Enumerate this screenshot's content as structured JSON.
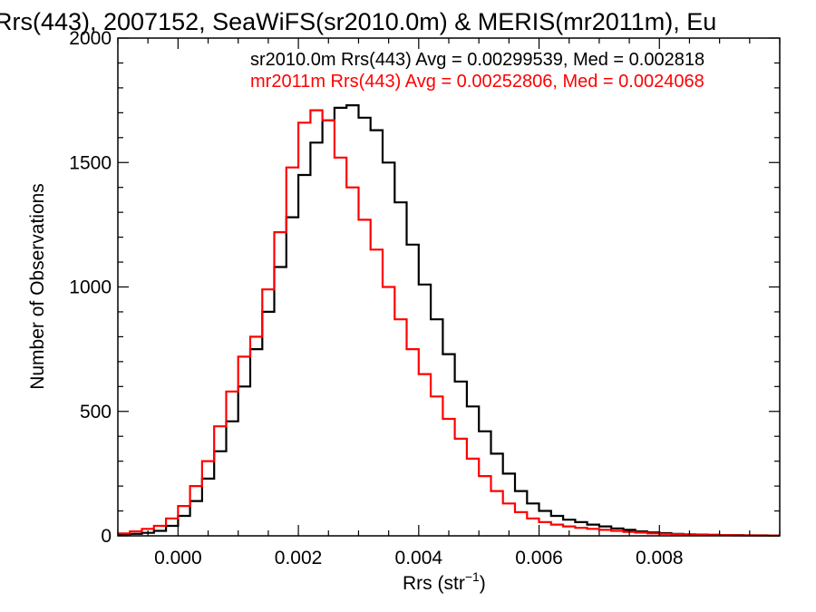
{
  "chart_data": {
    "type": "histogram",
    "title": "Rrs(443), 2007152, SeaWiFS(sr2010.0m) & MERIS(mr2011m), Eu",
    "xlabel": "Rrs (str",
    "xlabel_sup": "−1",
    "xlabel_close": ")",
    "ylabel": "Number of Observations",
    "xlim": [
      -0.001,
      0.01
    ],
    "ylim": [
      0,
      2000
    ],
    "xticks": [
      0.0,
      0.002,
      0.004,
      0.006,
      0.008
    ],
    "xtick_labels": [
      "0.000",
      "0.002",
      "0.004",
      "0.006",
      "0.008"
    ],
    "yticks": [
      0,
      500,
      1000,
      1500,
      2000
    ],
    "ytick_labels": [
      "0",
      "500",
      "1000",
      "1500",
      "2000"
    ],
    "grid": false,
    "series": [
      {
        "name": "sr2010.0m",
        "color": "#000000",
        "annotation": "sr2010.0m Rrs(443) Avg = 0.00299539, Med = 0.002818",
        "x": [
          -0.001,
          -0.0008,
          -0.0006,
          -0.0004,
          -0.0002,
          0.0,
          0.0002,
          0.0004,
          0.0006,
          0.0008,
          0.001,
          0.0012,
          0.0014,
          0.0016,
          0.0018,
          0.002,
          0.0022,
          0.0024,
          0.0026,
          0.0028,
          0.003,
          0.0032,
          0.0034,
          0.0036,
          0.0038,
          0.004,
          0.0042,
          0.0044,
          0.0046,
          0.0048,
          0.005,
          0.0052,
          0.0054,
          0.0056,
          0.0058,
          0.006,
          0.0062,
          0.0064,
          0.0066,
          0.0068,
          0.007,
          0.0072,
          0.0074,
          0.0076,
          0.0078,
          0.008,
          0.0082,
          0.0084,
          0.0086,
          0.0088,
          0.009,
          0.0092,
          0.0094,
          0.0096,
          0.0098
        ],
        "values": [
          5,
          8,
          12,
          20,
          40,
          80,
          140,
          230,
          340,
          460,
          600,
          750,
          900,
          1080,
          1280,
          1450,
          1580,
          1670,
          1720,
          1730,
          1680,
          1630,
          1500,
          1340,
          1170,
          1010,
          870,
          730,
          620,
          520,
          420,
          330,
          250,
          180,
          130,
          100,
          80,
          65,
          55,
          45,
          38,
          30,
          24,
          18,
          14,
          11,
          8,
          6,
          5,
          4,
          3,
          3,
          2,
          2,
          1
        ]
      },
      {
        "name": "mr2011m",
        "color": "#ff0000",
        "annotation": "mr2011m Rrs(443) Avg = 0.00252806, Med = 0.0024068",
        "x": [
          -0.001,
          -0.0008,
          -0.0006,
          -0.0004,
          -0.0002,
          0.0,
          0.0002,
          0.0004,
          0.0006,
          0.0008,
          0.001,
          0.0012,
          0.0014,
          0.0016,
          0.0018,
          0.002,
          0.0022,
          0.0024,
          0.0026,
          0.0028,
          0.003,
          0.0032,
          0.0034,
          0.0036,
          0.0038,
          0.004,
          0.0042,
          0.0044,
          0.0046,
          0.0048,
          0.005,
          0.0052,
          0.0054,
          0.0056,
          0.0058,
          0.006,
          0.0062,
          0.0064,
          0.0066,
          0.0068,
          0.007,
          0.0072,
          0.0074,
          0.0076,
          0.0078,
          0.008,
          0.0082,
          0.0084,
          0.0086,
          0.0088,
          0.009,
          0.0092,
          0.0094,
          0.0096,
          0.0098
        ],
        "values": [
          10,
          18,
          28,
          40,
          70,
          120,
          200,
          300,
          440,
          580,
          720,
          800,
          990,
          1220,
          1480,
          1660,
          1710,
          1670,
          1520,
          1400,
          1270,
          1150,
          1000,
          870,
          750,
          650,
          560,
          470,
          390,
          310,
          240,
          180,
          130,
          95,
          70,
          55,
          45,
          38,
          32,
          28,
          24,
          20,
          16,
          13,
          10,
          8,
          7,
          5,
          4,
          3,
          3,
          2,
          2,
          1,
          1
        ]
      }
    ]
  }
}
